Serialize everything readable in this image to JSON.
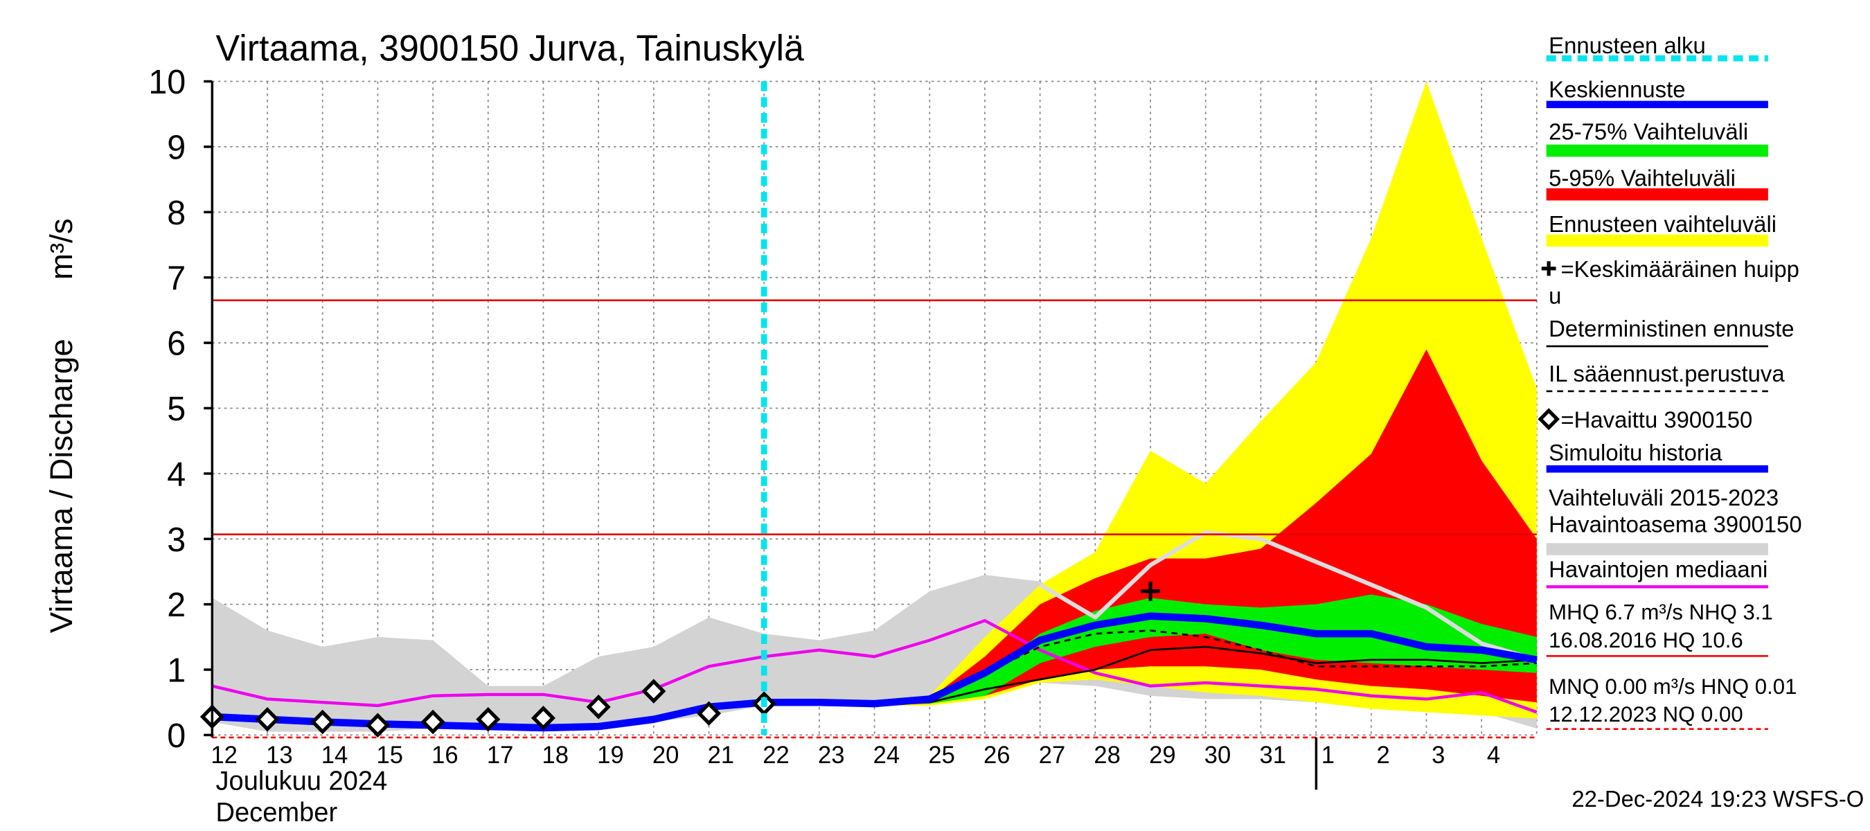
{
  "chart_data": {
    "type": "line",
    "title": "Virtaama, 3900150 Jurva, Tainuskylä",
    "y_label": "Virtaama / Discharge",
    "y_unit": "m³/s",
    "month_labels": [
      "Joulukuu  2024",
      "December"
    ],
    "footer": "22-Dec-2024 19:23 WSFS-O",
    "categories": [
      "12",
      "13",
      "14",
      "15",
      "16",
      "17",
      "18",
      "19",
      "20",
      "21",
      "22",
      "23",
      "24",
      "25",
      "26",
      "27",
      "28",
      "29",
      "30",
      "31",
      "1",
      "2",
      "3",
      "4",
      null
    ],
    "ylim": [
      0,
      10
    ],
    "yticks": [
      0,
      1,
      2,
      3,
      4,
      5,
      6,
      7,
      8,
      9,
      10
    ],
    "grid": true,
    "layers": [
      {
        "kind": "vline",
        "name": "Ennusteen alku",
        "color": "#00e5ee",
        "at": "22"
      },
      {
        "kind": "line",
        "name": "Keskiennuste",
        "color": "#0000ff",
        "values": [
          null,
          null,
          null,
          null,
          null,
          null,
          null,
          null,
          null,
          null,
          0.5,
          0.5,
          0.48,
          0.55,
          0.95,
          1.45,
          1.68,
          1.82,
          1.78,
          1.68,
          1.55,
          1.55,
          1.35,
          1.3,
          1.15
        ]
      },
      {
        "kind": "band",
        "name": "25-75% Vaihteluväli",
        "color": "#00ee00",
        "upper": [
          null,
          null,
          null,
          null,
          null,
          null,
          null,
          null,
          null,
          null,
          null,
          null,
          0.5,
          0.5,
          0.9,
          1.55,
          1.9,
          2.1,
          2.0,
          1.95,
          2.0,
          2.15,
          2.0,
          1.7,
          1.5
        ],
        "lower": [
          null,
          null,
          null,
          null,
          null,
          null,
          null,
          null,
          null,
          null,
          null,
          null,
          0.48,
          0.48,
          0.6,
          1.1,
          1.35,
          1.5,
          1.55,
          1.3,
          1.15,
          1.1,
          1.05,
          1.0,
          0.95
        ]
      },
      {
        "kind": "band",
        "name": "5-95% Vaihteluväli",
        "color": "#ff0000",
        "upper": [
          null,
          null,
          null,
          null,
          null,
          null,
          null,
          null,
          null,
          null,
          null,
          null,
          0.5,
          0.55,
          1.2,
          2.0,
          2.4,
          2.7,
          2.7,
          2.85,
          3.55,
          4.3,
          5.9,
          4.2,
          3.0
        ],
        "lower": [
          null,
          null,
          null,
          null,
          null,
          null,
          null,
          null,
          null,
          null,
          null,
          null,
          0.45,
          0.48,
          0.6,
          0.85,
          1.0,
          1.05,
          1.05,
          1.0,
          0.85,
          0.75,
          0.7,
          0.6,
          0.5
        ]
      },
      {
        "kind": "band",
        "name": "Ennusteen vaihteluväli",
        "color": "#ffff00",
        "upper": [
          null,
          null,
          null,
          null,
          null,
          null,
          null,
          null,
          null,
          null,
          null,
          null,
          0.5,
          0.6,
          1.5,
          2.3,
          2.8,
          4.35,
          3.85,
          4.8,
          5.7,
          7.6,
          10.0,
          7.6,
          5.3
        ],
        "lower": [
          null,
          null,
          null,
          null,
          null,
          null,
          null,
          null,
          null,
          null,
          null,
          null,
          0.45,
          0.45,
          0.55,
          0.8,
          0.85,
          0.75,
          0.65,
          0.6,
          0.5,
          0.4,
          0.35,
          0.3,
          0.25
        ]
      },
      {
        "kind": "plus",
        "name": [
          "=Keskimääräinen huipp",
          "u"
        ],
        "color": "#000000",
        "at": "29",
        "value": 2.2
      },
      {
        "kind": "line",
        "name": "Deterministinen ennuste",
        "color": "#000000",
        "values": [
          null,
          null,
          null,
          null,
          null,
          null,
          null,
          null,
          null,
          null,
          0.5,
          0.5,
          0.48,
          0.5,
          0.7,
          0.85,
          1.0,
          1.3,
          1.35,
          1.25,
          1.1,
          1.15,
          1.15,
          1.1,
          1.15
        ]
      },
      {
        "kind": "line",
        "name": "IL sääennust.perustuva",
        "color": "#000000",
        "dashed": true,
        "values": [
          null,
          null,
          null,
          null,
          null,
          null,
          null,
          null,
          null,
          null,
          0.5,
          0.5,
          0.48,
          0.55,
          0.95,
          1.35,
          1.55,
          1.6,
          1.5,
          1.3,
          1.05,
          1.05,
          1.05,
          1.05,
          1.1
        ]
      },
      {
        "kind": "diamond",
        "name": "=Havaittu 3900150",
        "color": "#000000",
        "values": [
          0.28,
          0.24,
          0.2,
          0.15,
          0.2,
          0.24,
          0.26,
          0.43,
          0.67,
          0.33,
          0.48,
          null,
          null,
          null,
          null,
          null,
          null,
          null,
          null,
          null,
          null,
          null,
          null,
          null,
          null
        ]
      },
      {
        "kind": "line",
        "name": "Simuloitu historia",
        "color": "#0000ff",
        "values": [
          0.28,
          0.24,
          0.2,
          0.17,
          0.15,
          0.13,
          0.11,
          0.13,
          0.24,
          0.43,
          0.5,
          null,
          null,
          null,
          null,
          null,
          null,
          null,
          null,
          null,
          null,
          null,
          null,
          null,
          null
        ]
      },
      {
        "kind": "band",
        "name": [
          "Vaihteluväli 2015-2023",
          " Havaintoasema 3900150"
        ],
        "color": "#d3d3d3",
        "upper": [
          2.1,
          1.6,
          1.35,
          1.5,
          1.45,
          0.75,
          0.75,
          1.2,
          1.35,
          1.8,
          1.55,
          1.45,
          1.6,
          2.2,
          2.45,
          2.35,
          2.0,
          1.8,
          1.6,
          1.5,
          1.35,
          1.15,
          1.0,
          0.85,
          0.7
        ],
        "lower": [
          0.2,
          0.05,
          0.05,
          0.05,
          0.1,
          0.1,
          0.1,
          0.15,
          0.2,
          0.3,
          0.45,
          0.45,
          0.45,
          0.5,
          0.7,
          0.8,
          0.75,
          0.6,
          0.55,
          0.55,
          0.5,
          0.45,
          0.4,
          0.35,
          0.1
        ]
      },
      {
        "kind": "line",
        "name": "Havaintojen mediaani",
        "color": "#ee00ee",
        "values": [
          0.75,
          0.55,
          0.5,
          0.45,
          0.6,
          0.62,
          0.62,
          0.5,
          0.7,
          1.05,
          1.2,
          1.3,
          1.2,
          1.45,
          1.75,
          1.3,
          0.95,
          0.75,
          0.8,
          0.75,
          0.7,
          0.6,
          0.55,
          0.65,
          0.35
        ]
      },
      {
        "kind": "line",
        "color": "#dcdcdc",
        "values": [
          null,
          null,
          null,
          null,
          null,
          null,
          null,
          null,
          null,
          null,
          null,
          null,
          null,
          null,
          null,
          2.3,
          1.8,
          2.6,
          3.1,
          3.0,
          2.65,
          2.3,
          1.95,
          1.4,
          1.15
        ]
      }
    ],
    "hlines": [
      {
        "value": 6.65,
        "color": "#e00000"
      },
      {
        "value": 3.07,
        "color": "#e00000"
      },
      {
        "value": 0,
        "color": "#ff0000",
        "dashed": true
      }
    ],
    "stats": [
      {
        "lines": [
          "MHQ  6.7 m³/s NHQ  3.1",
          "16.08.2016 HQ 10.6"
        ],
        "color": "#ff0000"
      },
      {
        "lines": [
          "MNQ 0.00 m³/s HNQ 0.01",
          "12.12.2023 NQ 0.00"
        ],
        "color": "#ff0000",
        "dashed": true
      }
    ]
  }
}
